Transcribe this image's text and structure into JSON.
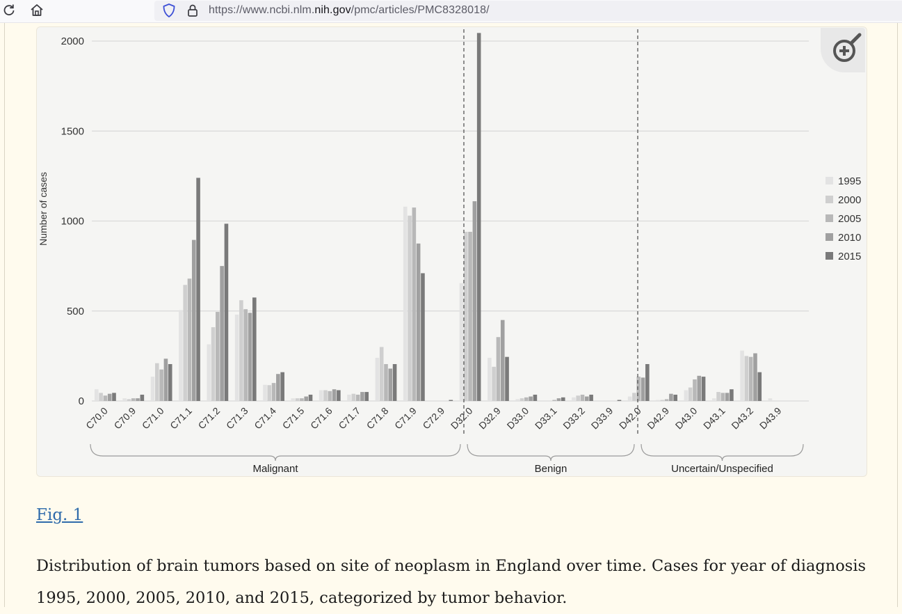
{
  "browser": {
    "url_prefix": "https://www.ncbi.nlm.",
    "url_domain": "nih.gov",
    "url_path": "/pmc/articles/PMC8328018/"
  },
  "figure": {
    "link_label": "Fig. 1",
    "caption": "Distribution of brain tumors based on site of neoplasm in England over time. Cases for year of diagnosis 1995, 2000, 2005, 2010, and 2015, categorized by tumor behavior."
  },
  "chart_data": {
    "type": "bar",
    "ylabel": "Number of cases",
    "ylim": [
      0,
      2000
    ],
    "yticks": [
      0,
      500,
      1000,
      1500,
      2000
    ],
    "grid": true,
    "legend_position": "right",
    "categories": [
      "C70.0",
      "C70.9",
      "C71.0",
      "C71.1",
      "C71.2",
      "C71.3",
      "C71.4",
      "C71.5",
      "C71.6",
      "C71.7",
      "C71.8",
      "C71.9",
      "C72.9",
      "D32.0",
      "D32.9",
      "D33.0",
      "D33.1",
      "D33.2",
      "D33.9",
      "D42.0",
      "D42.9",
      "D43.0",
      "D43.1",
      "D43.2",
      "D43.9"
    ],
    "series": [
      {
        "name": "1995",
        "color": "#e3e3e3",
        "values": [
          65,
          15,
          135,
          505,
          315,
          480,
          90,
          15,
          60,
          35,
          240,
          1080,
          0,
          655,
          240,
          10,
          0,
          20,
          0,
          25,
          5,
          60,
          15,
          280,
          15
        ]
      },
      {
        "name": "2000",
        "color": "#cfcfcf",
        "values": [
          45,
          10,
          210,
          645,
          410,
          560,
          88,
          15,
          60,
          40,
          300,
          1030,
          0,
          940,
          190,
          15,
          0,
          30,
          0,
          45,
          5,
          75,
          50,
          250,
          0
        ]
      },
      {
        "name": "2005",
        "color": "#b8b8b8",
        "values": [
          30,
          15,
          175,
          680,
          495,
          510,
          100,
          15,
          55,
          35,
          205,
          1075,
          0,
          940,
          355,
          20,
          5,
          35,
          0,
          135,
          10,
          120,
          45,
          245,
          0
        ]
      },
      {
        "name": "2010",
        "color": "#a0a0a0",
        "values": [
          40,
          15,
          235,
          895,
          750,
          490,
          150,
          25,
          65,
          50,
          180,
          875,
          0,
          1110,
          450,
          25,
          15,
          25,
          0,
          130,
          40,
          140,
          45,
          265,
          0
        ]
      },
      {
        "name": "2015",
        "color": "#7a7a7a",
        "values": [
          45,
          35,
          205,
          1240,
          985,
          575,
          160,
          35,
          60,
          50,
          205,
          710,
          5,
          2045,
          245,
          35,
          20,
          35,
          5,
          205,
          35,
          135,
          65,
          160,
          0
        ]
      }
    ],
    "groups": [
      {
        "label": "Malignant",
        "from": 0,
        "to": 12
      },
      {
        "label": "Benign",
        "from": 13,
        "to": 18
      },
      {
        "label": "Uncertain/Unspecified",
        "from": 19,
        "to": 24
      }
    ]
  }
}
